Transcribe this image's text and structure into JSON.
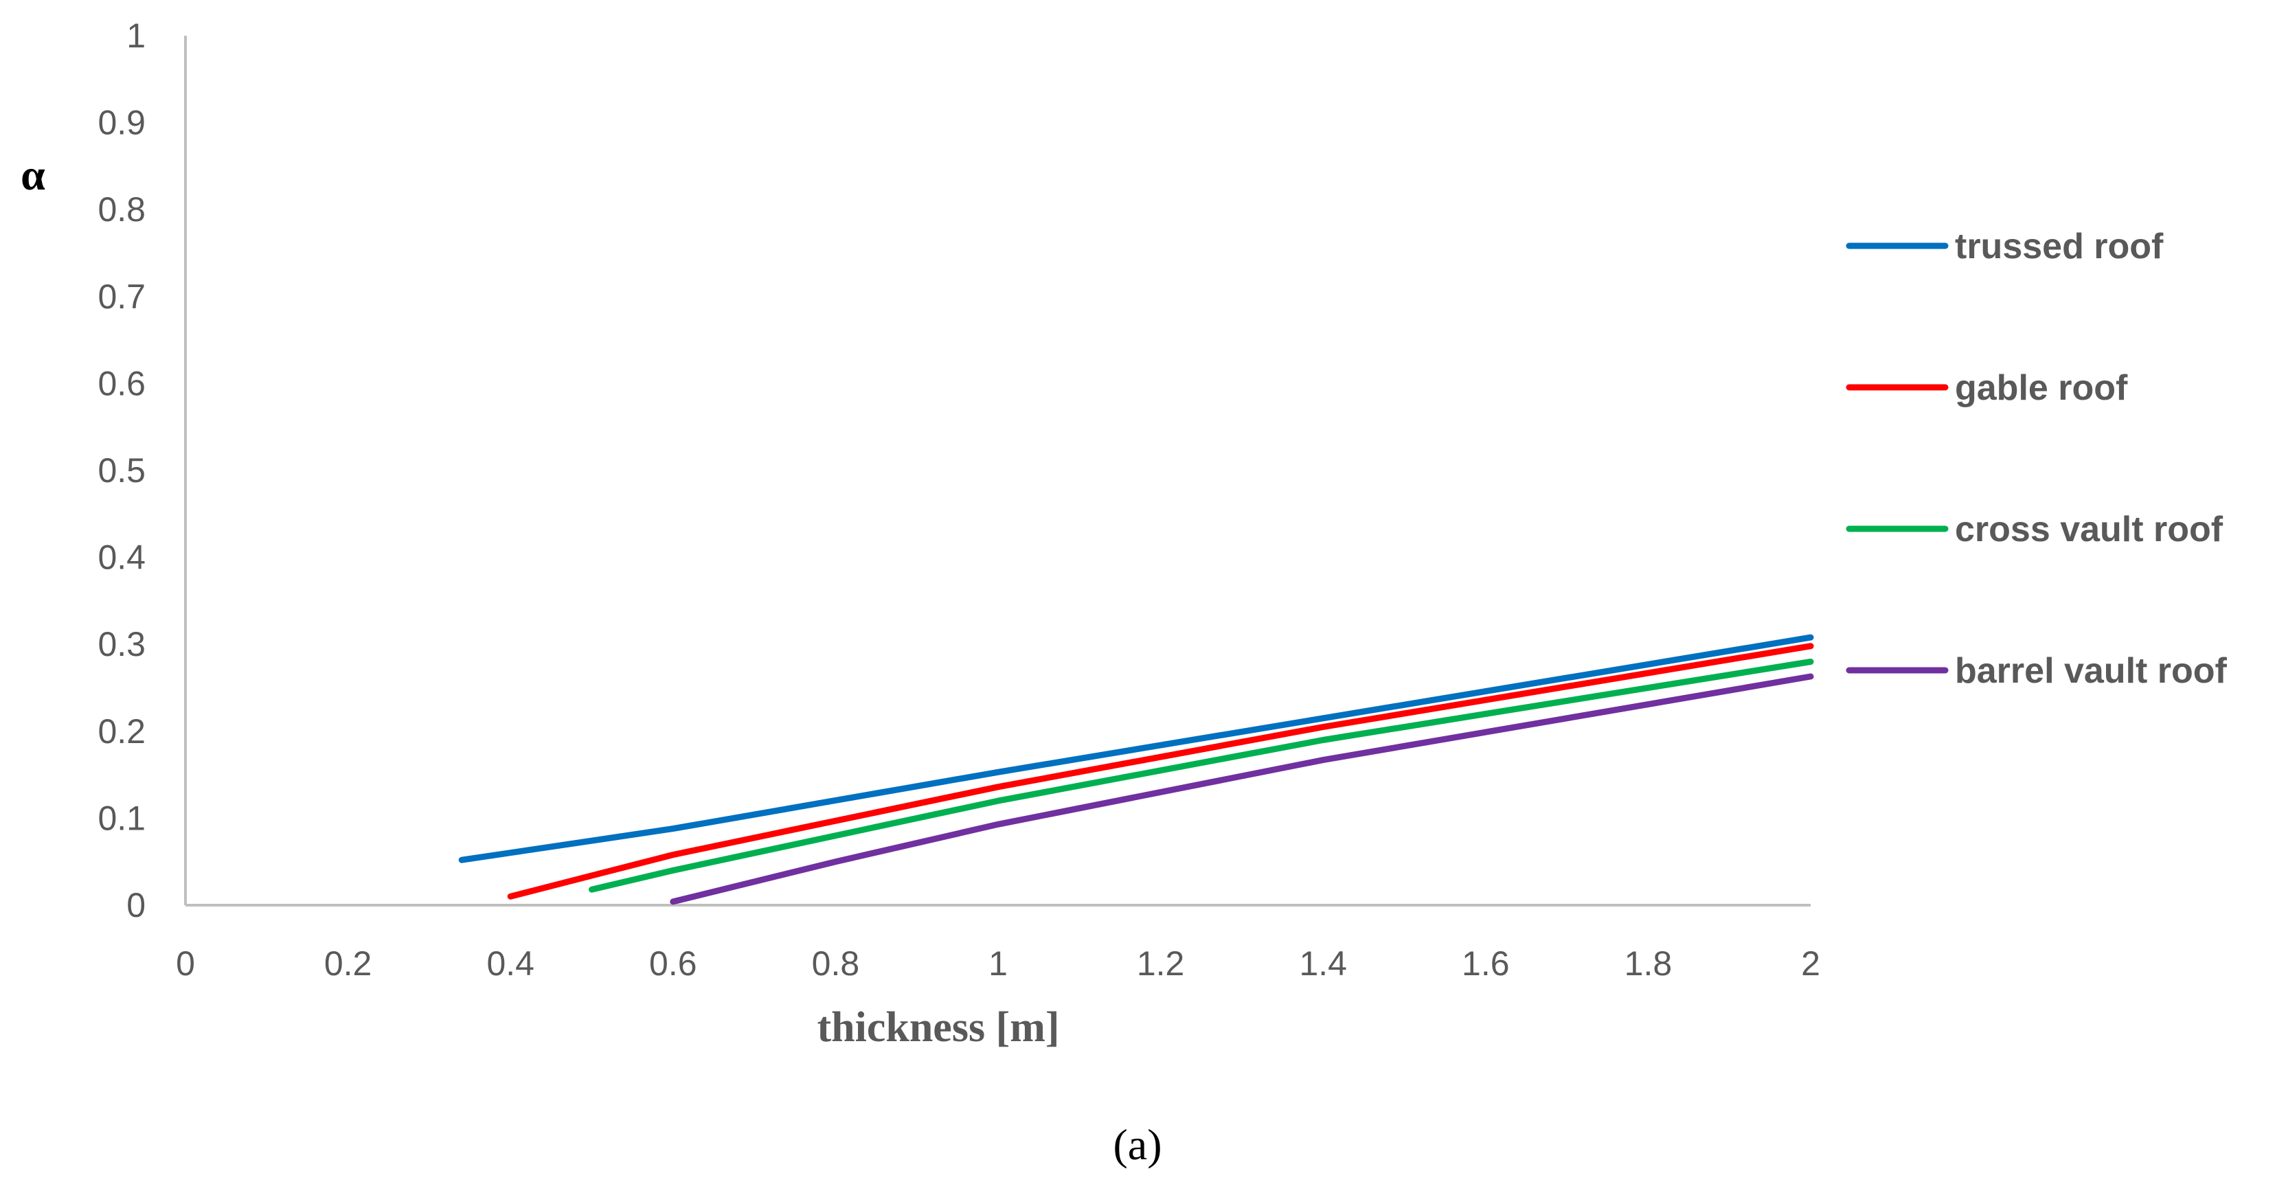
{
  "chart_data": {
    "type": "line",
    "xlabel": "thickness [m]",
    "ylabel": "α",
    "xlim": [
      0,
      2
    ],
    "ylim": [
      0,
      1
    ],
    "x_ticks": [
      "0",
      "0.2",
      "0.4",
      "0.6",
      "0.8",
      "1",
      "1.2",
      "1.4",
      "1.6",
      "1.8",
      "2"
    ],
    "y_ticks": [
      "0",
      "0.1",
      "0.2",
      "0.3",
      "0.4",
      "0.5",
      "0.6",
      "0.7",
      "0.8",
      "0.9",
      "1"
    ],
    "grid": false,
    "legend_position": "right",
    "series": [
      {
        "name": "trussed roof",
        "color": "#0070C0",
        "points": [
          [
            0.34,
            0.052
          ],
          [
            0.6,
            0.088
          ],
          [
            1.0,
            0.153
          ],
          [
            1.4,
            0.215
          ],
          [
            2.0,
            0.308
          ]
        ]
      },
      {
        "name": "gable roof",
        "color": "#FF0000",
        "points": [
          [
            0.4,
            0.01
          ],
          [
            0.6,
            0.058
          ],
          [
            1.0,
            0.136
          ],
          [
            1.4,
            0.205
          ],
          [
            2.0,
            0.298
          ]
        ]
      },
      {
        "name": "cross vault roof",
        "color": "#00B050",
        "points": [
          [
            0.5,
            0.018
          ],
          [
            0.6,
            0.04
          ],
          [
            1.0,
            0.12
          ],
          [
            1.4,
            0.19
          ],
          [
            2.0,
            0.28
          ]
        ]
      },
      {
        "name": "barrel vault roof",
        "color": "#7030A0",
        "points": [
          [
            0.6,
            0.004
          ],
          [
            0.8,
            0.05
          ],
          [
            1.0,
            0.093
          ],
          [
            1.4,
            0.167
          ],
          [
            2.0,
            0.263
          ]
        ]
      }
    ]
  },
  "caption": "(a)"
}
